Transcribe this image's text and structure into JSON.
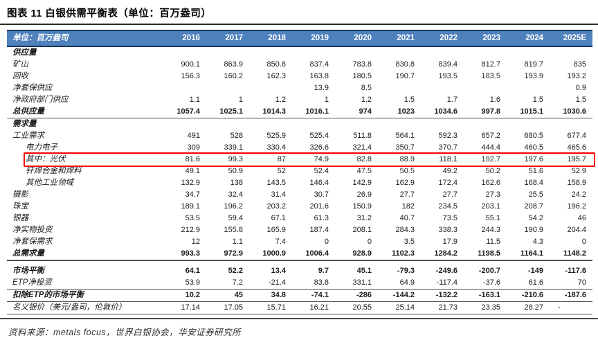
{
  "title": "图表 11 白银供需平衡表（单位：百万盎司）",
  "source": "资料来源：metals focus，世界白银协会，华安证券研究所",
  "colors": {
    "header_bg": "#4f81bd",
    "header_border": "#17375e",
    "highlight_border": "#fe0000",
    "rule_dark": "#2b2b2b"
  },
  "table": {
    "unit_label": "单位：百万盎司",
    "years": [
      "2016",
      "2017",
      "2018",
      "2019",
      "2020",
      "2021",
      "2022",
      "2023",
      "2024",
      "2025E"
    ],
    "rows": [
      {
        "label": "供应量",
        "bold": true,
        "values": [
          "",
          "",
          "",
          "",
          "",
          "",
          "",
          "",
          "",
          ""
        ]
      },
      {
        "label": "矿山",
        "values": [
          "900.1",
          "863.9",
          "850.8",
          "837.4",
          "783.8",
          "830.8",
          "839.4",
          "812.7",
          "819.7",
          "835"
        ]
      },
      {
        "label": "回收",
        "values": [
          "156.3",
          "160.2",
          "162.3",
          "163.8",
          "180.5",
          "190.7",
          "193.5",
          "183.5",
          "193.9",
          "193.2"
        ]
      },
      {
        "label": "净套保供应",
        "values": [
          "",
          "",
          "",
          "13.9",
          "8.5",
          "",
          "",
          "",
          "",
          "0.9"
        ]
      },
      {
        "label": "净政府部门供应",
        "values": [
          "1.1",
          "1",
          "1.2",
          "1",
          "1.2",
          "1.5",
          "1.7",
          "1.6",
          "1.5",
          "1.5"
        ]
      },
      {
        "label": "总供应量",
        "bold": true,
        "underline": "thin",
        "values": [
          "1057.4",
          "1025.1",
          "1014.3",
          "1016.1",
          "974",
          "1023",
          "1034.6",
          "997.8",
          "1015.1",
          "1030.6"
        ]
      },
      {
        "label": "需求量",
        "bold": true,
        "values": [
          "",
          "",
          "",
          "",
          "",
          "",
          "",
          "",
          "",
          ""
        ]
      },
      {
        "label": "工业需求",
        "values": [
          "491",
          "528",
          "525.9",
          "525.4",
          "511.8",
          "564.1",
          "592.3",
          "657.2",
          "680.5",
          "677.4"
        ]
      },
      {
        "label": "电力电子",
        "indent": true,
        "values": [
          "309",
          "339.1",
          "330.4",
          "326.6",
          "321.4",
          "350.7",
          "370.7",
          "444.4",
          "460.5",
          "465.6"
        ]
      },
      {
        "label": "其中：光伏",
        "indent": true,
        "highlight": true,
        "values": [
          "81.6",
          "99.3",
          "87",
          "74.9",
          "82.8",
          "88.9",
          "118.1",
          "192.7",
          "197.6",
          "195.7"
        ]
      },
      {
        "label": "钎焊合金和焊料",
        "indent": true,
        "values": [
          "49.1",
          "50.9",
          "52",
          "52.4",
          "47.5",
          "50.5",
          "49.2",
          "50.2",
          "51.6",
          "52.9"
        ]
      },
      {
        "label": "其他工业领域",
        "indent": true,
        "values": [
          "132.9",
          "138",
          "143.5",
          "146.4",
          "142.9",
          "162.9",
          "172.4",
          "162.6",
          "168.4",
          "158.9"
        ]
      },
      {
        "label": "摄影",
        "values": [
          "34.7",
          "32.4",
          "31.4",
          "30.7",
          "26.9",
          "27.7",
          "27.7",
          "27.3",
          "25.5",
          "24.2"
        ]
      },
      {
        "label": "珠宝",
        "values": [
          "189.1",
          "196.2",
          "203.2",
          "201.6",
          "150.9",
          "182",
          "234.5",
          "203.1",
          "208.7",
          "196.2"
        ]
      },
      {
        "label": "银器",
        "values": [
          "53.5",
          "59.4",
          "67.1",
          "61.3",
          "31.2",
          "40.7",
          "73.5",
          "55.1",
          "54.2",
          "46"
        ]
      },
      {
        "label": "净实物投资",
        "values": [
          "212.9",
          "155.8",
          "165.9",
          "187.4",
          "208.1",
          "284.3",
          "338.3",
          "244.3",
          "190.9",
          "204.4"
        ]
      },
      {
        "label": "净套保需求",
        "values": [
          "12",
          "1.1",
          "7.4",
          "0",
          "0",
          "3.5",
          "17.9",
          "11.5",
          "4.3",
          "0"
        ]
      },
      {
        "label": "总需求量",
        "bold": true,
        "underline": "thick",
        "values": [
          "993.3",
          "972.9",
          "1000.9",
          "1006.4",
          "928.9",
          "1102.3",
          "1284.2",
          "1198.5",
          "1164.1",
          "1148.2"
        ]
      },
      {
        "label": "市场平衡",
        "bold": true,
        "gap_above": true,
        "values": [
          "64.1",
          "52.2",
          "13.4",
          "9.7",
          "45.1",
          "-79.3",
          "-249.6",
          "-200.7",
          "-149",
          "-117.6"
        ]
      },
      {
        "label": "ETP净投资",
        "underline": "thin",
        "values": [
          "53.9",
          "7.2",
          "-21.4",
          "83.8",
          "331.1",
          "64.9",
          "-117.4",
          "-37.6",
          "61.6",
          "70"
        ]
      },
      {
        "label": "扣除ETP的市场平衡",
        "bold": true,
        "underline": "thin",
        "values": [
          "10.2",
          "45",
          "34.8",
          "-74.1",
          "-286",
          "-144.2",
          "-132.2",
          "-163.1",
          "-210.6",
          "-187.6"
        ]
      },
      {
        "label": "名义银价（美元/盎司，伦敦价）",
        "underline": "thin",
        "values": [
          "17.14",
          "17.05",
          "15.71",
          "16.21",
          "20.55",
          "25.14",
          "21.73",
          "23.35",
          "28.27",
          "-"
        ]
      }
    ]
  }
}
